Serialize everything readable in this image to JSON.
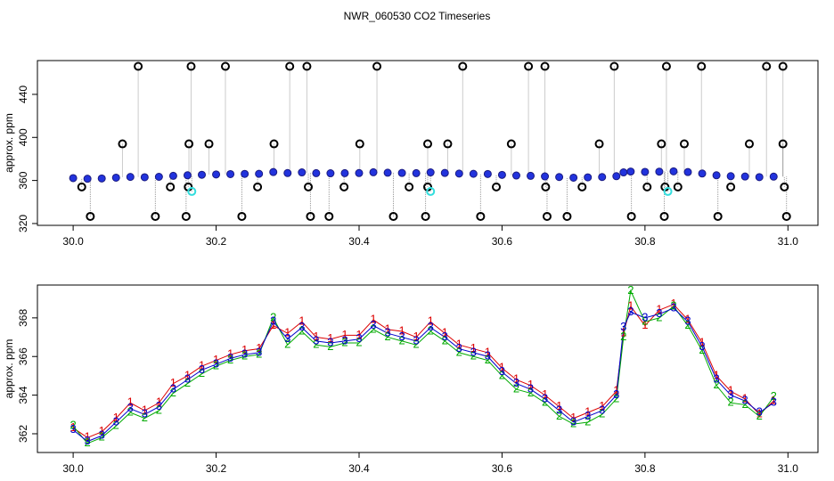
{
  "title": "NWR_060530  CO2 Timeseries",
  "chart_data": [
    {
      "type": "scatter",
      "ylabel": "approx. ppm",
      "xlim": [
        29.95,
        31.042
      ],
      "ylim": [
        318.3,
        471.4
      ],
      "xticks": [
        {
          "value": 30,
          "label": "30.0"
        },
        30.2,
        30.4,
        30.6,
        30.8,
        {
          "value": 31,
          "label": "31.0"
        }
      ],
      "yticks": [
        320,
        360,
        400,
        440
      ],
      "series": [
        {
          "color": "#2233dd",
          "style": "filled",
          "x": [
            30.0,
            30.02,
            30.04,
            30.06,
            30.08,
            30.1,
            30.12,
            30.14,
            30.16,
            30.18,
            30.2,
            30.22,
            30.24,
            30.26,
            30.28,
            30.3,
            30.32,
            30.34,
            30.36,
            30.38,
            30.4,
            30.42,
            30.44,
            30.46,
            30.48,
            30.5,
            30.52,
            30.54,
            30.56,
            30.58,
            30.6,
            30.62,
            30.64,
            30.66,
            30.68,
            30.7,
            30.72,
            30.74,
            30.76,
            30.77,
            30.78,
            30.8,
            30.82,
            30.84,
            30.86,
            30.88,
            30.9,
            30.92,
            30.94,
            30.96,
            30.98
          ],
          "values": [
            362.2,
            361.6,
            361.9,
            362.6,
            363.3,
            363.0,
            363.4,
            364.3,
            364.8,
            365.3,
            365.6,
            365.9,
            366.1,
            366.2,
            367.8,
            366.9,
            367.5,
            366.8,
            366.7,
            366.8,
            366.9,
            367.6,
            367.2,
            367.0,
            366.8,
            367.5,
            367.0,
            366.4,
            366.2,
            366.0,
            365.2,
            364.6,
            364.3,
            363.8,
            363.2,
            362.6,
            362.9,
            363.2,
            364.0,
            367.5,
            368.3,
            368.0,
            368.2,
            368.5,
            367.8,
            366.5,
            364.8,
            364.0,
            363.7,
            363.1,
            363.6
          ]
        },
        {
          "color": "#000000",
          "style": "open",
          "x": [
            30.091,
            30.165,
            30.213,
            30.303,
            30.327,
            30.425,
            30.545,
            30.637,
            30.66,
            30.757,
            30.83,
            30.879,
            30.97,
            30.993,
            30.069,
            30.162,
            30.19,
            30.281,
            30.401,
            30.496,
            30.524,
            30.613,
            30.736,
            30.823,
            30.855,
            30.946,
            30.993,
            30.012,
            30.136,
            30.161,
            30.258,
            30.329,
            30.379,
            30.47,
            30.496,
            30.592,
            30.661,
            30.712,
            30.803,
            30.828,
            30.846,
            30.92,
            30.995,
            30.024,
            30.115,
            30.158,
            30.236,
            30.332,
            30.358,
            30.448,
            30.493,
            30.57,
            30.663,
            30.691,
            30.781,
            30.827,
            30.902,
            30.998
          ],
          "values": [
            466,
            466,
            466,
            466,
            466,
            466,
            466,
            466,
            466,
            466,
            466,
            466,
            466,
            466,
            394,
            394,
            394,
            394,
            394,
            394,
            394,
            394,
            394,
            394,
            394,
            394,
            394,
            354,
            354,
            354,
            354,
            354,
            354,
            354,
            354,
            354,
            354,
            354,
            354,
            354,
            354,
            354,
            354,
            326.6,
            326.6,
            326.6,
            326.6,
            326.6,
            326.6,
            326.6,
            326.6,
            326.6,
            326.6,
            326.6,
            326.6,
            326.6,
            326.6,
            326.6
          ]
        },
        {
          "color": "#33dddd",
          "style": "open",
          "x": [
            30.166,
            30.5,
            30.832
          ],
          "values": [
            349.8,
            349.8,
            349.8
          ]
        }
      ]
    },
    {
      "type": "line",
      "ylabel": "approx. ppm",
      "xlim": [
        29.95,
        31.042
      ],
      "ylim": [
        361.03,
        369.7
      ],
      "xticks": [
        {
          "value": 30,
          "label": "30.0"
        },
        30.2,
        30.4,
        30.6,
        30.8,
        {
          "value": 31,
          "label": "31.0"
        }
      ],
      "yticks": [
        362,
        364,
        366,
        368
      ],
      "x": [
        30.0,
        30.02,
        30.04,
        30.06,
        30.08,
        30.1,
        30.12,
        30.14,
        30.16,
        30.18,
        30.2,
        30.22,
        30.24,
        30.26,
        30.28,
        30.3,
        30.32,
        30.34,
        30.36,
        30.38,
        30.4,
        30.42,
        30.44,
        30.46,
        30.48,
        30.5,
        30.52,
        30.54,
        30.56,
        30.58,
        30.6,
        30.62,
        30.64,
        30.66,
        30.68,
        30.7,
        30.72,
        30.74,
        30.76,
        30.77,
        30.78,
        30.8,
        30.82,
        30.84,
        30.86,
        30.88,
        30.9,
        30.92,
        30.94,
        30.96,
        30.98
      ],
      "series": [
        {
          "marker": "1",
          "color": "#dd0000",
          "values": [
            362.3,
            361.8,
            362.1,
            362.8,
            363.6,
            363.2,
            363.6,
            364.6,
            365.0,
            365.5,
            365.8,
            366.1,
            366.3,
            366.4,
            367.6,
            367.2,
            367.8,
            367.0,
            366.9,
            367.1,
            367.1,
            367.9,
            367.4,
            367.3,
            367.0,
            367.8,
            367.2,
            366.6,
            366.4,
            366.2,
            365.4,
            364.8,
            364.5,
            364.0,
            363.4,
            362.8,
            363.1,
            363.4,
            364.2,
            367.2,
            368.6,
            367.6,
            368.4,
            368.7,
            367.9,
            366.7,
            365.0,
            364.2,
            363.8,
            363.0,
            363.7
          ]
        },
        {
          "marker": "2",
          "color": "#00aa00",
          "values": [
            362.4,
            361.5,
            361.8,
            362.4,
            363.1,
            362.8,
            363.2,
            364.1,
            364.6,
            365.1,
            365.5,
            365.8,
            366.0,
            366.1,
            368.0,
            366.6,
            367.3,
            366.6,
            366.5,
            366.7,
            366.7,
            367.4,
            367.0,
            366.8,
            366.6,
            367.3,
            366.8,
            366.2,
            366.0,
            365.8,
            365.0,
            364.3,
            364.1,
            363.6,
            362.9,
            362.5,
            362.6,
            363.0,
            363.8,
            367.0,
            369.4,
            367.8,
            368.0,
            368.6,
            367.6,
            366.3,
            364.5,
            363.6,
            363.5,
            362.9,
            363.9
          ]
        },
        {
          "marker": "3",
          "color": "#0000cc",
          "values": [
            362.2,
            361.6,
            361.9,
            362.6,
            363.3,
            363.0,
            363.4,
            364.3,
            364.8,
            365.3,
            365.6,
            365.9,
            366.1,
            366.2,
            367.8,
            366.9,
            367.5,
            366.8,
            366.7,
            366.8,
            366.9,
            367.6,
            367.2,
            367.0,
            366.8,
            367.5,
            367.0,
            366.4,
            366.2,
            366.0,
            365.2,
            364.6,
            364.3,
            363.8,
            363.2,
            362.6,
            362.9,
            363.2,
            364.0,
            367.5,
            368.3,
            368.0,
            368.2,
            368.5,
            367.8,
            366.5,
            364.8,
            364.0,
            363.7,
            363.1,
            363.6
          ]
        }
      ]
    }
  ]
}
